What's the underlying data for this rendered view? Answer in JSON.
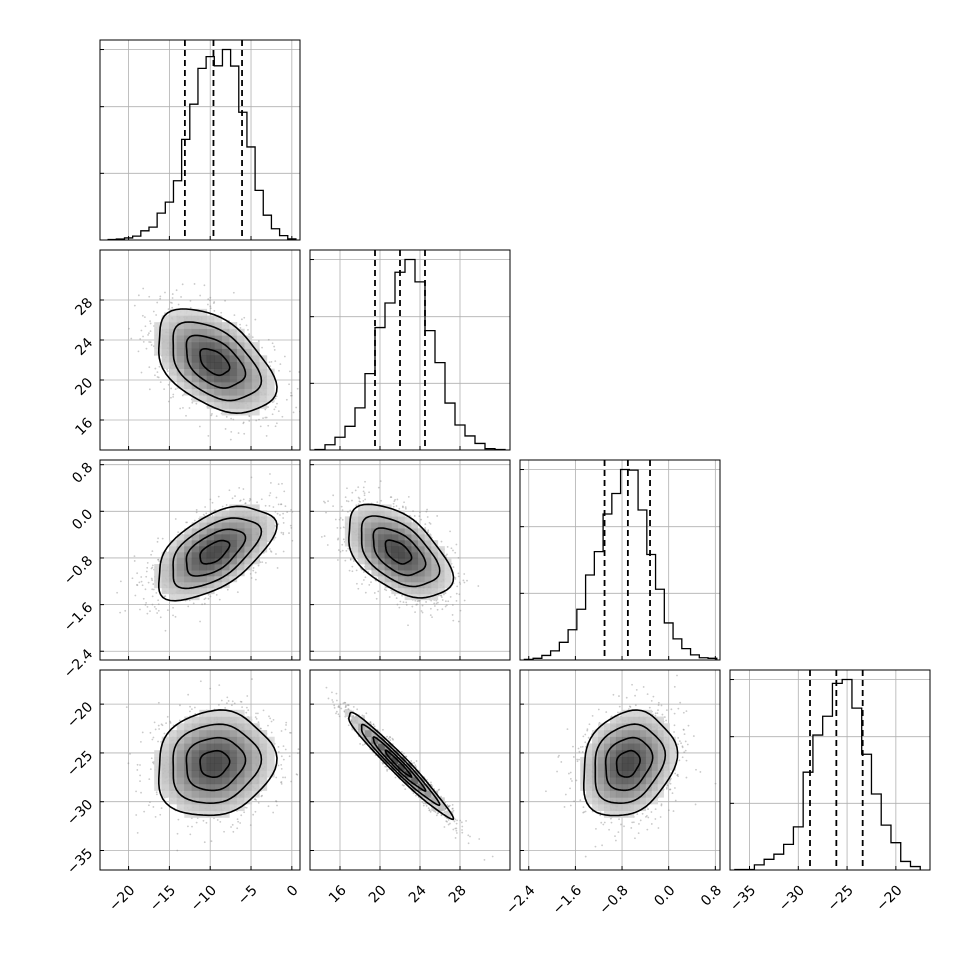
{
  "chart_data": {
    "type": "corner",
    "title": "",
    "params": [
      {
        "id": "p0",
        "range": [
          -23.5,
          1.0
        ],
        "ticks": [
          -20,
          -15,
          -10,
          -5,
          0
        ],
        "tick_labels": [
          "−20",
          "−15",
          "−10",
          "−5",
          "0"
        ],
        "hist_centers": [
          -22.0,
          -21.0,
          -20.0,
          -19.0,
          -18.0,
          -17.0,
          -16.0,
          -15.0,
          -14.0,
          -13.0,
          -12.0,
          -11.0,
          -10.0,
          -9.0,
          -8.0,
          -7.0,
          -6.0,
          -5.0,
          -4.0,
          -3.0,
          -2.0,
          -1.0,
          0.0
        ],
        "hist_counts": [
          2,
          4,
          9,
          17,
          40,
          56,
          117,
          165,
          258,
          438,
          591,
          747,
          798,
          758,
          829,
          757,
          556,
          405,
          216,
          108,
          49,
          19,
          5
        ],
        "quantiles": [
          -13.1,
          -9.6,
          -6.1
        ]
      },
      {
        "id": "p1",
        "range": [
          13.0,
          33.0
        ],
        "ticks": [
          16,
          20,
          24,
          28
        ],
        "tick_labels": [
          "16",
          "20",
          "24",
          "28"
        ],
        "hist_centers": [
          14.0,
          15.0,
          16.0,
          17.0,
          18.0,
          19.0,
          20.0,
          21.0,
          22.0,
          23.0,
          24.0,
          25.0,
          26.0,
          27.0,
          28.0,
          29.0,
          30.0,
          31.0,
          32.0
        ],
        "hist_counts": [
          1,
          12,
          29,
          54,
          96,
          174,
          279,
          335,
          405,
          434,
          383,
          272,
          199,
          107,
          57,
          32,
          15,
          3,
          1
        ],
        "quantiles": [
          19.5,
          22.0,
          24.5
        ]
      },
      {
        "id": "p2",
        "range": [
          -2.55,
          0.88
        ],
        "ticks": [
          -2.4,
          -1.6,
          -0.8,
          0.0,
          0.8
        ],
        "tick_labels": [
          "−2.4",
          "−1.6",
          "−0.8",
          "0.0",
          "0.8"
        ],
        "hist_centers": [
          -2.4,
          -2.25,
          -2.1,
          -1.95,
          -1.8,
          -1.65,
          -1.5,
          -1.35,
          -1.2,
          -1.05,
          -0.9,
          -0.75,
          -0.6,
          -0.45,
          -0.3,
          -0.15,
          0.0,
          0.15,
          0.3,
          0.45,
          0.6,
          0.75
        ],
        "hist_counts": [
          1,
          3,
          8,
          16,
          31,
          53,
          89,
          149,
          190,
          256,
          292,
          334,
          333,
          263,
          185,
          124,
          65,
          37,
          20,
          9,
          4,
          3
        ],
        "quantiles": [
          -1.1,
          -0.7,
          -0.32
        ]
      },
      {
        "id": "p3",
        "range": [
          -37.0,
          -16.5
        ],
        "ticks": [
          -35,
          -30,
          -25,
          -20
        ],
        "tick_labels": [
          "−35",
          "−30",
          "−25",
          "−20"
        ],
        "hist_centers": [
          -36.0,
          -35.0,
          -34.0,
          -33.0,
          -32.0,
          -31.0,
          -30.0,
          -29.0,
          -28.0,
          -27.0,
          -26.0,
          -25.0,
          -24.0,
          -23.0,
          -22.0,
          -21.0,
          -20.0,
          -19.0,
          -18.0
        ],
        "hist_counts": [
          1,
          1,
          12,
          25,
          37,
          60,
          101,
          229,
          316,
          360,
          437,
          446,
          379,
          271,
          178,
          105,
          64,
          20,
          8
        ],
        "quantiles": [
          -28.8,
          -26.1,
          -23.4
        ]
      }
    ],
    "pairs": [
      {
        "x": "p0",
        "y": "p1",
        "mean": [
          -9.5,
          21.8
        ],
        "sd": [
          3.6,
          2.6
        ],
        "rho": -0.45
      },
      {
        "x": "p0",
        "y": "p2",
        "mean": [
          -9.5,
          -0.7
        ],
        "sd": [
          3.6,
          0.4
        ],
        "rho": 0.55
      },
      {
        "x": "p1",
        "y": "p2",
        "mean": [
          21.8,
          -0.7
        ],
        "sd": [
          2.6,
          0.4
        ],
        "rho": -0.5
      },
      {
        "x": "p0",
        "y": "p3",
        "mean": [
          -9.5,
          -26.1
        ],
        "sd": [
          3.6,
          2.7
        ],
        "rho": 0.1
      },
      {
        "x": "p1",
        "y": "p3",
        "mean": [
          21.8,
          -26.1
        ],
        "sd": [
          2.6,
          2.7
        ],
        "rho": -0.97
      },
      {
        "x": "p2",
        "y": "p3",
        "mean": [
          -0.7,
          -26.1
        ],
        "sd": [
          0.4,
          2.7
        ],
        "rho": 0.2
      }
    ],
    "contour_levels_sigma": [
      0.5,
      1.0,
      1.5,
      2.0
    ],
    "quantile_line_style": "dashed",
    "grid": true,
    "colors": {
      "line": "#000000",
      "grid": "#b0b0b0",
      "scatter": "#8a8a8a"
    }
  }
}
